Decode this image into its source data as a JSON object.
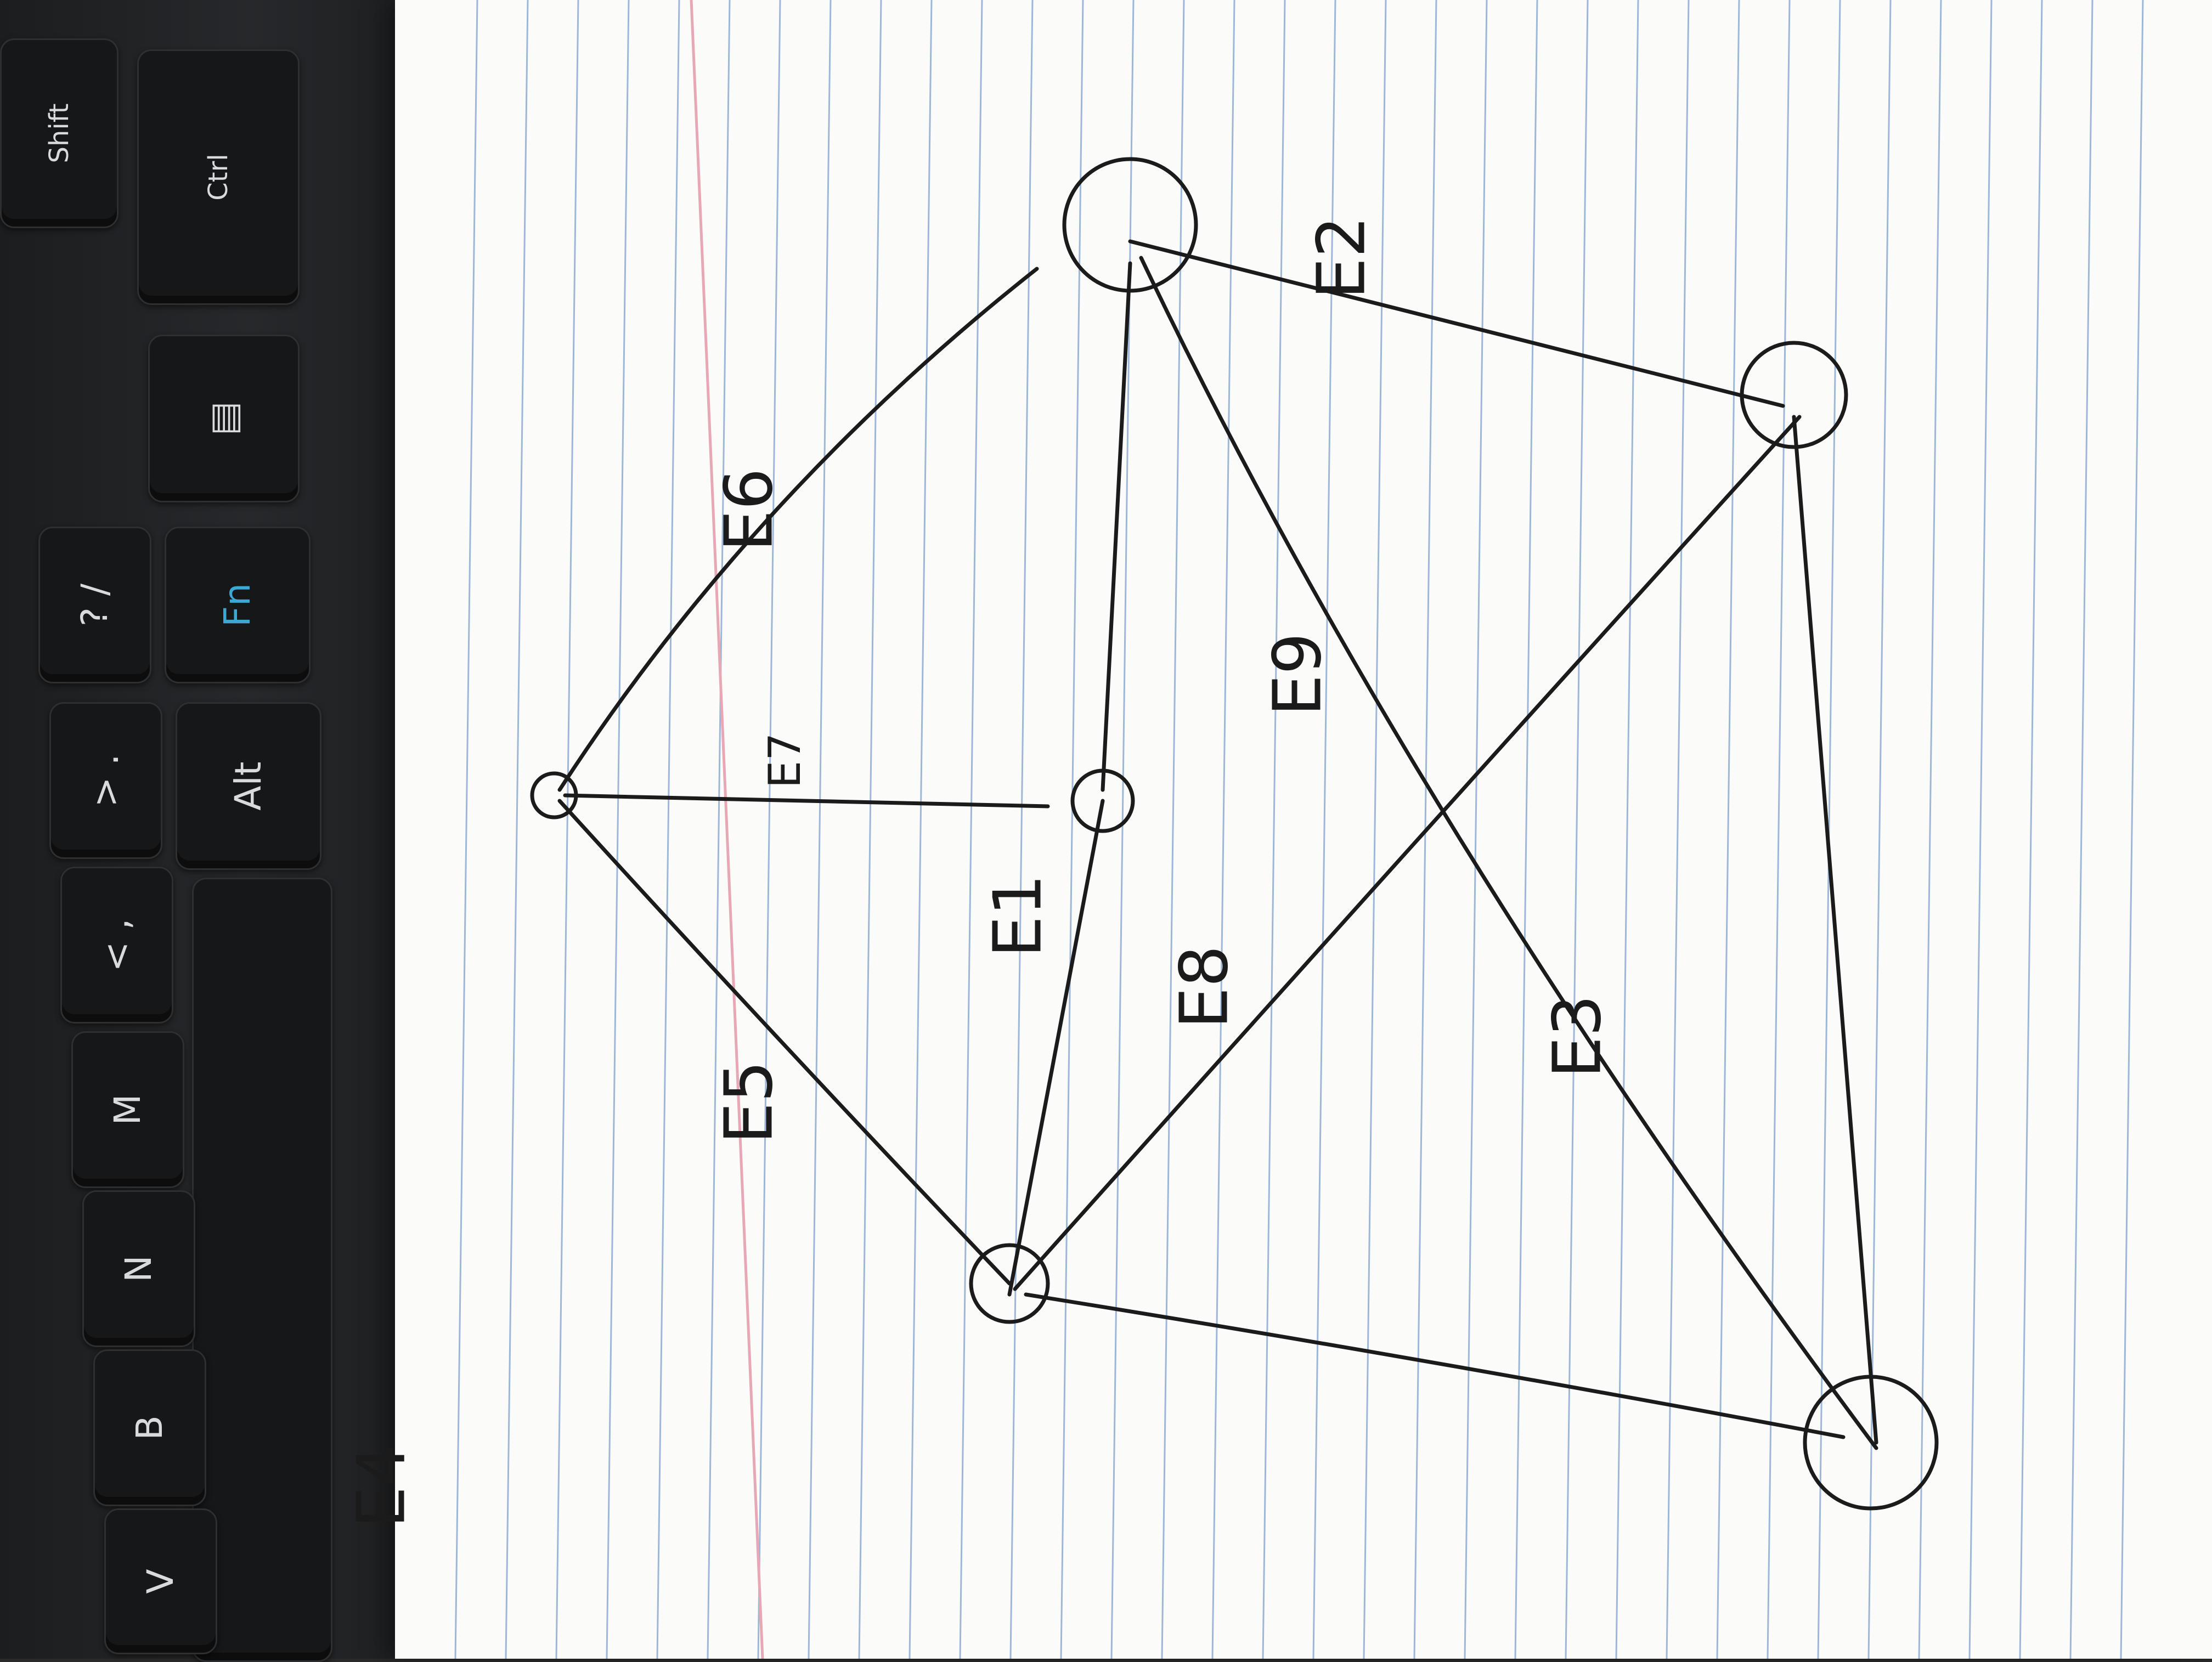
{
  "keyboard": {
    "keys": [
      {
        "id": "shift",
        "label": "Shift"
      },
      {
        "id": "ctrl",
        "label": "Ctrl"
      },
      {
        "id": "question",
        "label": "? /"
      },
      {
        "id": "fn",
        "label": "Fn"
      },
      {
        "id": "greater",
        "label": "> ."
      },
      {
        "id": "alt",
        "label": "Alt"
      },
      {
        "id": "less",
        "label": "< ,"
      },
      {
        "id": "m",
        "label": "M"
      },
      {
        "id": "n",
        "label": "N"
      },
      {
        "id": "b",
        "label": "B"
      },
      {
        "id": "v",
        "label": "V"
      },
      {
        "id": "menu",
        "label": "▤"
      }
    ]
  },
  "drawing": {
    "edge_labels": [
      "E1",
      "E2",
      "E3",
      "E4",
      "E5",
      "E6",
      "E7",
      "E8",
      "E9"
    ],
    "colors": {
      "ink": "#1b1b1b",
      "rule": "#9cb7d8",
      "margin": "#e8a7b4",
      "paper": "#fbfbfa"
    }
  }
}
